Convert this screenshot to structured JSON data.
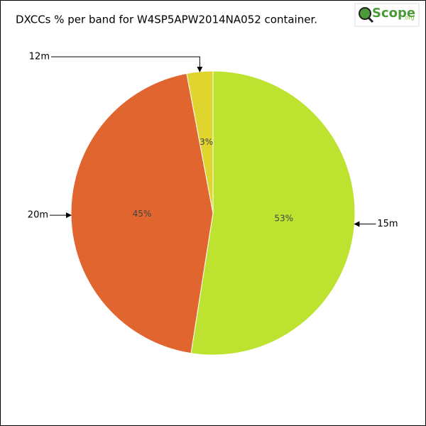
{
  "chart_data": {
    "type": "pie",
    "title": "DXCCs % per band for W4SP5APW2014NA052 container.",
    "categories": [
      "15m",
      "20m",
      "12m"
    ],
    "values": [
      53,
      45,
      3
    ],
    "value_labels": [
      "53%",
      "45%",
      "3%"
    ],
    "colors": [
      "#bde22f",
      "#e0652f",
      "#e0d42f"
    ]
  },
  "logo": {
    "text": "Scope",
    "suffix": ".org"
  }
}
